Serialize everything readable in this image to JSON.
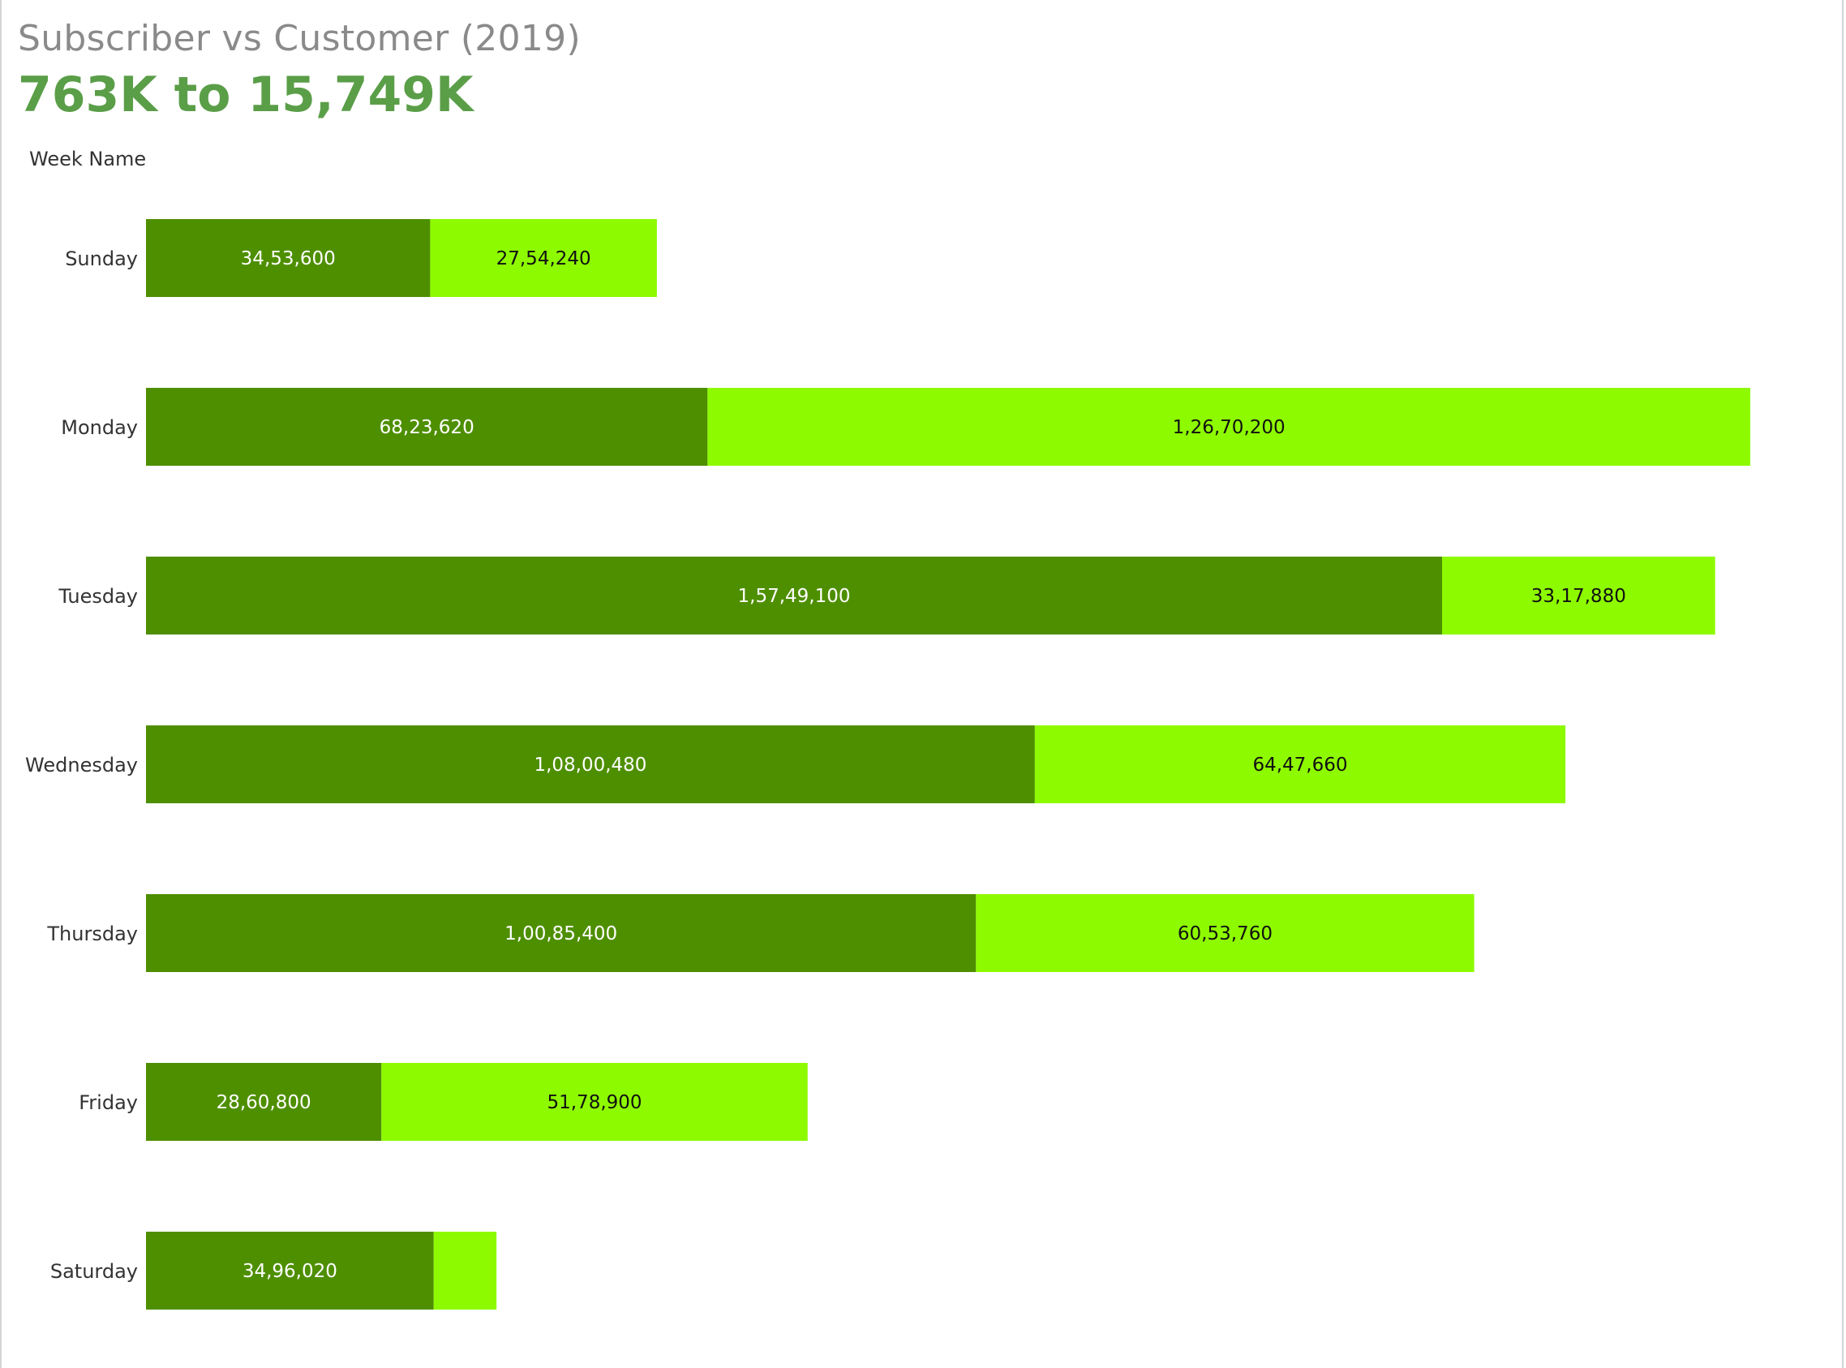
{
  "title": "Subscriber vs Customer (2019)",
  "subtitle": "763K to 15,749K",
  "axis_title": "Week Name",
  "colors": {
    "subscriber": "#4e8f00",
    "customer": "#8efa00",
    "title": "#8a8a8a",
    "subtitle": "#5a9e48",
    "label_on_dark": "#ffffff",
    "label_on_light": "#111111"
  },
  "chart_data": {
    "type": "bar",
    "orientation": "horizontal",
    "stacked": true,
    "title": "Subscriber vs Customer (2019)",
    "subtitle": "763K to 15,749K",
    "ylabel": "Week Name",
    "categories": [
      "Sunday",
      "Monday",
      "Tuesday",
      "Wednesday",
      "Thursday",
      "Friday",
      "Saturday"
    ],
    "series": [
      {
        "color": "#4e8f00",
        "values": [
          3453600,
          6823620,
          15749100,
          10800480,
          10085400,
          2860800,
          3496020
        ],
        "labels": [
          "34,53,600",
          "68,23,620",
          "1,57,49,100",
          "1,08,00,480",
          "1,00,85,400",
          "28,60,800",
          "34,96,020"
        ]
      },
      {
        "color": "#8efa00",
        "values": [
          2754240,
          12670200,
          3317880,
          6447660,
          6053760,
          5178900,
          763000
        ],
        "labels": [
          "27,54,240",
          "1,26,70,200",
          "33,17,880",
          "64,47,660",
          "60,53,760",
          "51,78,900",
          ""
        ]
      }
    ],
    "grid": false,
    "legend": "none"
  }
}
